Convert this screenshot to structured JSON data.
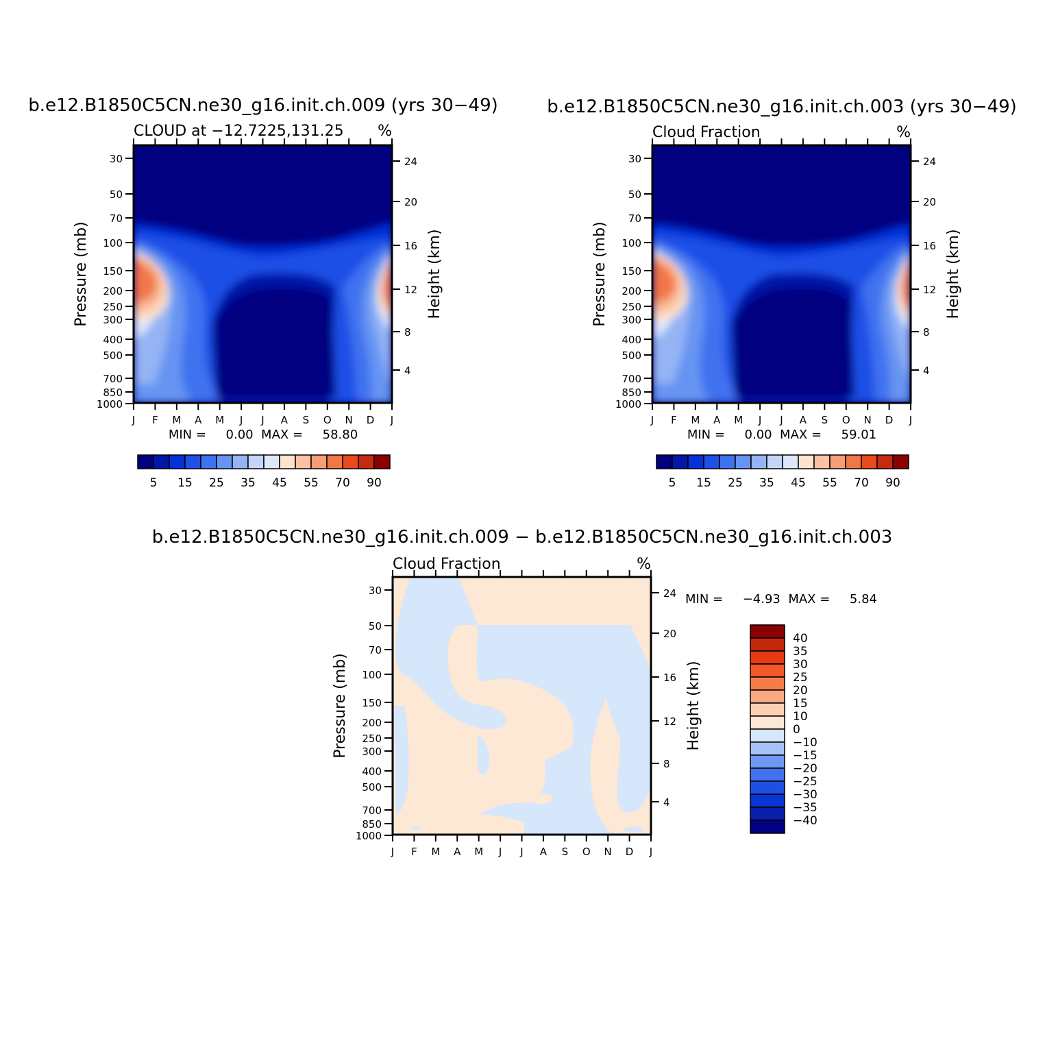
{
  "months": [
    "J",
    "F",
    "M",
    "A",
    "M",
    "J",
    "J",
    "A",
    "S",
    "O",
    "N",
    "D",
    "J"
  ],
  "pressure_ticks": [
    "30",
    "50",
    "70",
    "100",
    "150",
    "200",
    "250",
    "300",
    "400",
    "500",
    "700",
    "850",
    "1000"
  ],
  "height_ticks": [
    "24",
    "20",
    "16",
    "12",
    "8",
    "4"
  ],
  "colors": {
    "cloud": [
      "#000080",
      "#0017a8",
      "#0530d6",
      "#1e4fe6",
      "#3f72f0",
      "#6694f2",
      "#94b4f4",
      "#c4d6f8",
      "#dde9fb",
      "#fde3cc",
      "#fac2a2",
      "#f79d76",
      "#f27646",
      "#e84a1d",
      "#c62a10",
      "#8b0000"
    ],
    "diff": [
      "#000080",
      "#0a1fa8",
      "#0a34d4",
      "#1e50e4",
      "#4272ed",
      "#6f98f4",
      "#a6c1f7",
      "#d6e6fb",
      "#fde8d6",
      "#fbd0b4",
      "#f9aa84",
      "#f67c48",
      "#f2582a",
      "#e63a0f",
      "#c02a0a",
      "#8b0000"
    ]
  },
  "chart_data": [
    {
      "type": "heatmap",
      "title": "b.e12.B1850C5CN.ne30_g16.init.ch.009 (yrs 30−49)",
      "subtitle_left": "CLOUD at −12.7225,131.25",
      "subtitle_right": "%",
      "ylabel": "Pressure (mb)",
      "ylabel_right": "Height (km)",
      "x": [
        "J",
        "F",
        "M",
        "A",
        "M",
        "J",
        "J",
        "A",
        "S",
        "O",
        "N",
        "D",
        "J"
      ],
      "y_pressure": [
        30,
        50,
        70,
        100,
        150,
        200,
        250,
        300,
        400,
        500,
        700,
        850,
        1000
      ],
      "stats": "MIN =     0.00  MAX =     58.80",
      "min": 0.0,
      "max": 58.8,
      "legend": {
        "labels": [
          "5",
          "15",
          "25",
          "35",
          "45",
          "55",
          "70",
          "90"
        ],
        "boxes": 16,
        "orientation": "horizontal"
      }
    },
    {
      "type": "heatmap",
      "title": "b.e12.B1850C5CN.ne30_g16.init.ch.003 (yrs 30−49)",
      "subtitle_left": "Cloud Fraction",
      "subtitle_right": "%",
      "ylabel": "Pressure (mb)",
      "ylabel_right": "Height (km)",
      "x": [
        "J",
        "F",
        "M",
        "A",
        "M",
        "J",
        "J",
        "A",
        "S",
        "O",
        "N",
        "D",
        "J"
      ],
      "y_pressure": [
        30,
        50,
        70,
        100,
        150,
        200,
        250,
        300,
        400,
        500,
        700,
        850,
        1000
      ],
      "stats": "MIN =     0.00  MAX =     59.01",
      "min": 0.0,
      "max": 59.01,
      "legend": {
        "labels": [
          "5",
          "15",
          "25",
          "35",
          "45",
          "55",
          "70",
          "90"
        ],
        "boxes": 16,
        "orientation": "horizontal"
      }
    },
    {
      "type": "heatmap",
      "title": "b.e12.B1850C5CN.ne30_g16.init.ch.009 − b.e12.B1850C5CN.ne30_g16.init.ch.003",
      "subtitle_left": "Cloud Fraction",
      "subtitle_right": "%",
      "ylabel": "Pressure (mb)",
      "ylabel_right": "Height (km)",
      "x": [
        "J",
        "F",
        "M",
        "A",
        "M",
        "J",
        "J",
        "A",
        "S",
        "O",
        "N",
        "D",
        "J"
      ],
      "y_pressure": [
        30,
        50,
        70,
        100,
        150,
        200,
        250,
        300,
        400,
        500,
        700,
        850,
        1000
      ],
      "stats": "MIN =     −4.93  MAX =     5.84",
      "min": -4.93,
      "max": 5.84,
      "legend": {
        "labels": [
          "40",
          "35",
          "30",
          "25",
          "20",
          "15",
          "10",
          "0",
          "−10",
          "−15",
          "−20",
          "−25",
          "−30",
          "−35",
          "−40"
        ],
        "boxes": 16,
        "orientation": "vertical"
      }
    }
  ]
}
